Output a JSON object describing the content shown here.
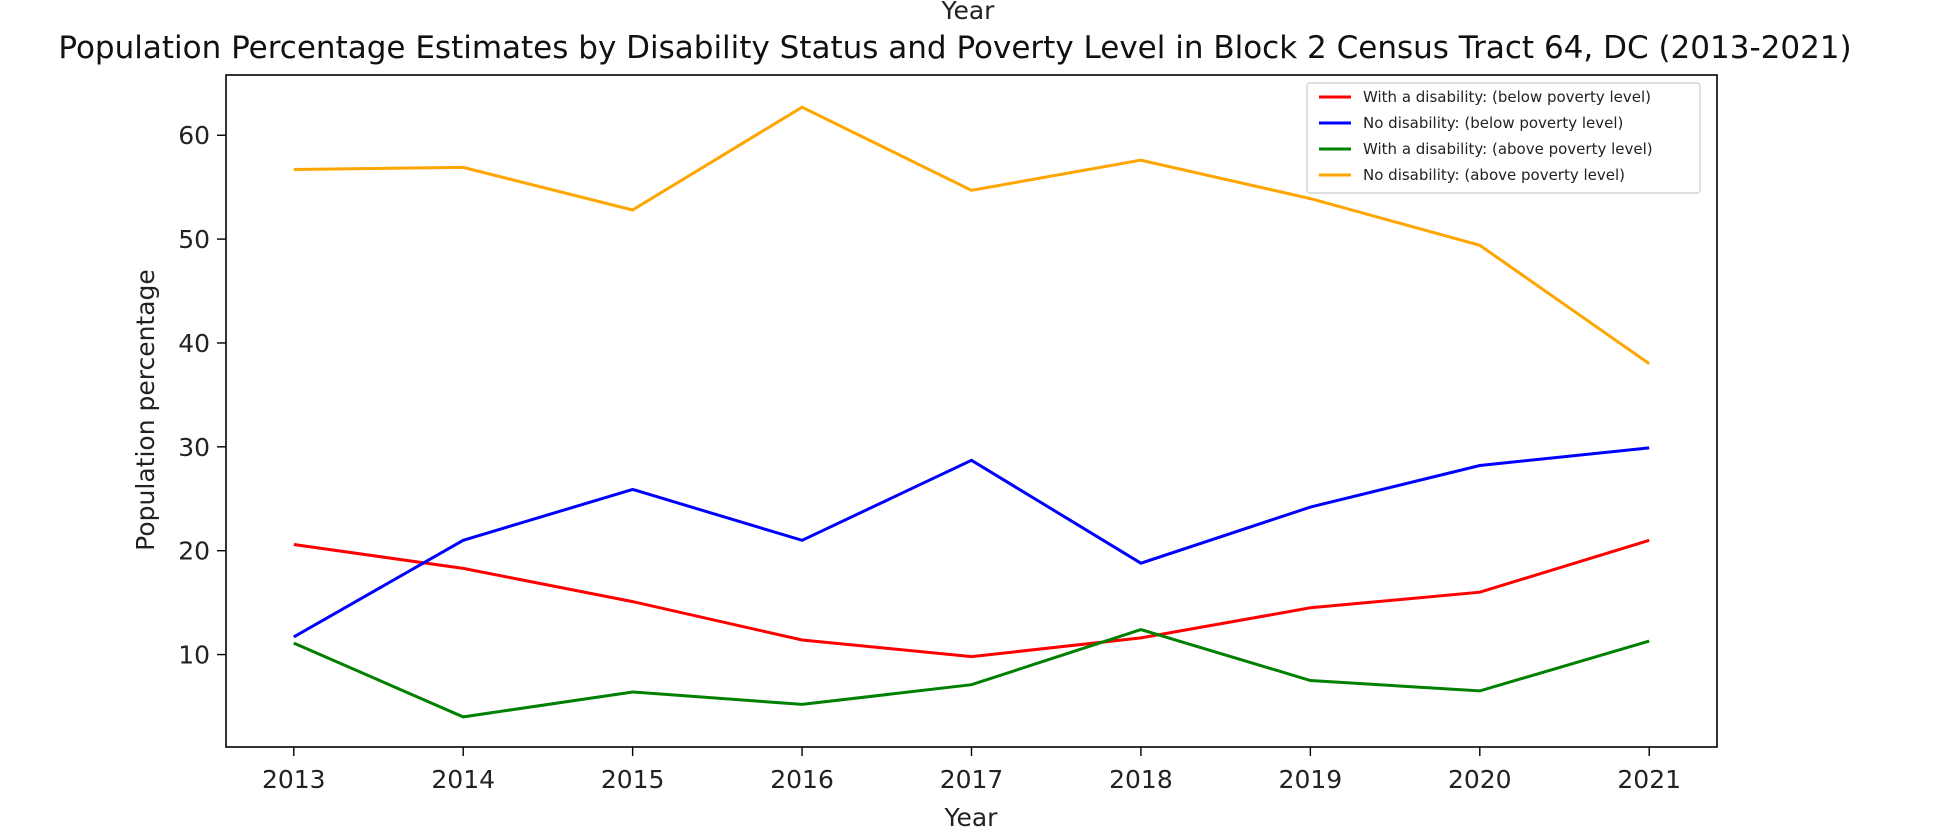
{
  "chart_data": {
    "type": "line",
    "top_label": "Year",
    "title": "Population Percentage Estimates by Disability Status and Poverty Level in Block 2 Census Tract 64, DC (2013-2021)",
    "xlabel": "Year",
    "ylabel": "Population percentage",
    "x": [
      2013,
      2014,
      2015,
      2016,
      2017,
      2018,
      2019,
      2020,
      2021
    ],
    "x_tick_labels": [
      "2013",
      "2014",
      "2015",
      "2016",
      "2017",
      "2018",
      "2019",
      "2020",
      "2021"
    ],
    "y_ticks": [
      10,
      20,
      30,
      40,
      50,
      60
    ],
    "y_tick_labels": [
      "10",
      "20",
      "30",
      "40",
      "50",
      "60"
    ],
    "xlim": [
      2012.6,
      2021.4
    ],
    "ylim": [
      1.1,
      65.8
    ],
    "grid": false,
    "legend_position": "top-right",
    "series": [
      {
        "name": "With a disability: (below poverty level)",
        "color": "#ff0000",
        "values": [
          20.6,
          18.3,
          15.1,
          11.4,
          9.8,
          11.6,
          14.5,
          16.0,
          21.0
        ]
      },
      {
        "name": "No disability: (below poverty level)",
        "color": "#0000ff",
        "values": [
          11.7,
          21.0,
          25.9,
          21.0,
          28.7,
          18.8,
          24.2,
          28.2,
          29.9
        ]
      },
      {
        "name": "With a disability: (above poverty level)",
        "color": "#008000",
        "values": [
          11.1,
          4.0,
          6.4,
          5.2,
          7.1,
          12.4,
          7.5,
          6.5,
          11.3
        ]
      },
      {
        "name": "No disability: (above poverty level)",
        "color": "#ffa500",
        "values": [
          56.7,
          56.9,
          52.8,
          62.7,
          54.7,
          57.6,
          53.9,
          49.4,
          38.0
        ]
      }
    ]
  }
}
